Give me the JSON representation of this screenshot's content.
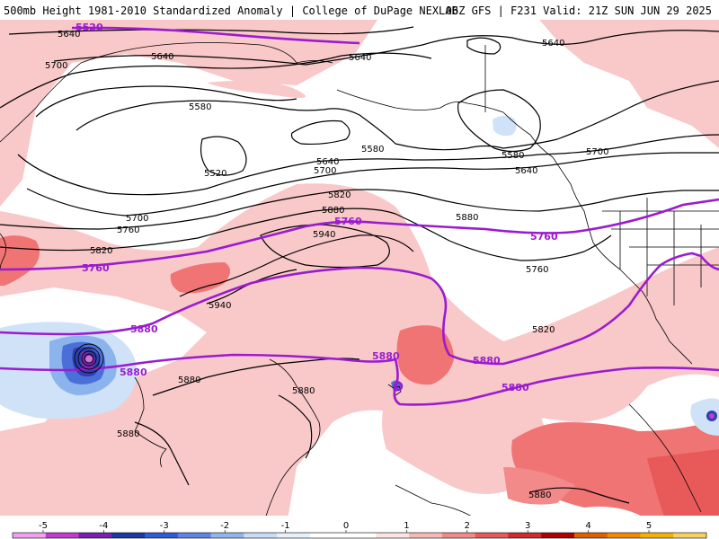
{
  "header": {
    "left": "500mb Height 1981-2010 Standardized Anomaly | College of DuPage NEXLAB",
    "right": "06Z GFS | F231 Valid: 21Z SUN JUN 29 2025"
  },
  "colors": {
    "pos1": "#f9c8c8",
    "pos2": "#f07474",
    "neg1": "#cfe2f7",
    "neg2": "#8bb4ec",
    "neg3": "#4b6fd8",
    "neg4": "#2f3fb0",
    "neg5": "#7c2ab8",
    "contour": "#000000",
    "highlight": "#9b1bd0"
  },
  "contour_labels": {
    "black": [
      "5640",
      "5640",
      "5640",
      "5700",
      "5580",
      "5520",
      "5640",
      "5700",
      "5580",
      "5640",
      "5700",
      "5580",
      "5640",
      "5700",
      "5760",
      "5820",
      "5880",
      "5940",
      "5820",
      "5940",
      "5880",
      "5760",
      "5820",
      "5880",
      "5880",
      "5880",
      "5880",
      "5880"
    ],
    "purple": [
      "5520",
      "5760",
      "5760",
      "5760",
      "5880",
      "5880",
      "5880",
      "5880",
      "5880"
    ]
  },
  "legend": {
    "ticks": [
      "-5",
      "-4",
      "-3",
      "-2",
      "-1",
      "0",
      "1",
      "2",
      "3",
      "4",
      "5"
    ],
    "colors": [
      "#f2a0f2",
      "#c23bd2",
      "#7a1fb0",
      "#1a3aa0",
      "#2f5cd8",
      "#5a86e6",
      "#8fb6ef",
      "#c8dcf6",
      "#e8f0fb",
      "#ffffff",
      "#ffffff",
      "#fde4e4",
      "#f7b8b8",
      "#f28a8a",
      "#e85a5a",
      "#d42a2a",
      "#b00000",
      "#e06000",
      "#f28a00",
      "#f5b000",
      "#f8d060"
    ]
  }
}
